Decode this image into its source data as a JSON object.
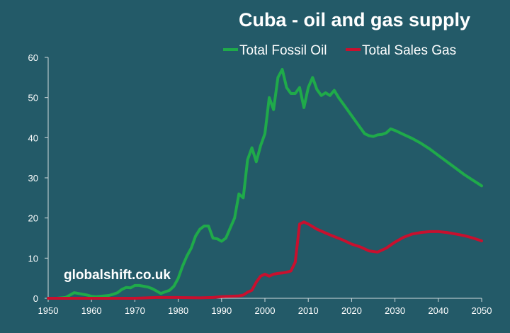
{
  "chart_data": {
    "type": "line",
    "title": "Cuba - oil and gas supply",
    "xlabel": "",
    "ylabel": "",
    "xlim": [
      1950,
      2050
    ],
    "ylim": [
      0,
      60
    ],
    "x_ticks": [
      1950,
      1960,
      1970,
      1980,
      1990,
      2000,
      2010,
      2020,
      2030,
      2040,
      2050
    ],
    "y_ticks": [
      0,
      10,
      20,
      30,
      40,
      50,
      60
    ],
    "grid": false,
    "legend_position": "top-right",
    "watermark": "globalshift.co.uk",
    "series": [
      {
        "name": "Total Fossil Oil",
        "color": "#1faa4a",
        "x": [
          1950,
          1952,
          1954,
          1955,
          1956,
          1957,
          1958,
          1959,
          1960,
          1961,
          1962,
          1963,
          1964,
          1965,
          1966,
          1967,
          1968,
          1969,
          1970,
          1971,
          1972,
          1973,
          1974,
          1975,
          1976,
          1977,
          1978,
          1979,
          1980,
          1981,
          1982,
          1983,
          1984,
          1985,
          1986,
          1987,
          1988,
          1989,
          1990,
          1991,
          1992,
          1993,
          1994,
          1995,
          1996,
          1997,
          1998,
          1999,
          2000,
          2001,
          2002,
          2003,
          2004,
          2005,
          2006,
          2007,
          2008,
          2009,
          2010,
          2011,
          2012,
          2013,
          2014,
          2015,
          2016,
          2017,
          2018,
          2019,
          2020,
          2021,
          2022,
          2023,
          2024,
          2025,
          2026,
          2027,
          2028,
          2029,
          2030,
          2032,
          2034,
          2036,
          2038,
          2040,
          2042,
          2044,
          2046,
          2048,
          2050
        ],
        "values": [
          0,
          0,
          0.2,
          0.8,
          1.4,
          1.2,
          1.0,
          0.8,
          0.5,
          0.4,
          0.5,
          0.6,
          0.7,
          1.0,
          1.4,
          2.2,
          2.7,
          2.6,
          3.2,
          3.2,
          3.0,
          2.8,
          2.4,
          1.8,
          1.2,
          1.6,
          2.0,
          3.0,
          5.0,
          8.0,
          10.5,
          12.5,
          15.5,
          17.2,
          18.0,
          18.0,
          15.0,
          14.8,
          14.2,
          15.0,
          17.5,
          20.0,
          26.0,
          25.0,
          34.5,
          37.5,
          34.0,
          38.0,
          41.0,
          50.0,
          47.0,
          55.0,
          57.0,
          52.5,
          51.0,
          51.0,
          52.5,
          47.5,
          52.5,
          55.0,
          52.0,
          50.5,
          51.2,
          50.5,
          51.8,
          50.0,
          48.5,
          47.0,
          45.5,
          44.0,
          42.5,
          41.0,
          40.5,
          40.3,
          40.7,
          40.8,
          41.2,
          42.2,
          41.8,
          40.8,
          39.8,
          38.6,
          37.2,
          35.6,
          34.0,
          32.4,
          30.8,
          29.4,
          28.0
        ]
      },
      {
        "name": "Total Sales Gas",
        "color": "#c8102e",
        "x": [
          1950,
          1960,
          1970,
          1975,
          1980,
          1985,
          1988,
          1990,
          1992,
          1994,
          1995,
          1996,
          1997,
          1998,
          1999,
          2000,
          2001,
          2002,
          2003,
          2004,
          2005,
          2006,
          2007,
          2008,
          2009,
          2010,
          2012,
          2015,
          2018,
          2020,
          2022,
          2024,
          2026,
          2028,
          2030,
          2032,
          2034,
          2036,
          2038,
          2040,
          2042,
          2044,
          2046,
          2048,
          2050
        ],
        "values": [
          0,
          0,
          0,
          0.2,
          0.2,
          0.1,
          0.2,
          0.4,
          0.5,
          0.6,
          0.8,
          1.5,
          2.0,
          4.0,
          5.5,
          6.0,
          5.5,
          6.0,
          6.2,
          6.3,
          6.5,
          6.8,
          9.0,
          18.5,
          19.0,
          18.5,
          17.2,
          15.8,
          14.5,
          13.5,
          12.8,
          11.8,
          11.5,
          12.5,
          14.0,
          15.2,
          16.0,
          16.4,
          16.6,
          16.6,
          16.4,
          16.0,
          15.6,
          15.0,
          14.3
        ]
      }
    ]
  }
}
